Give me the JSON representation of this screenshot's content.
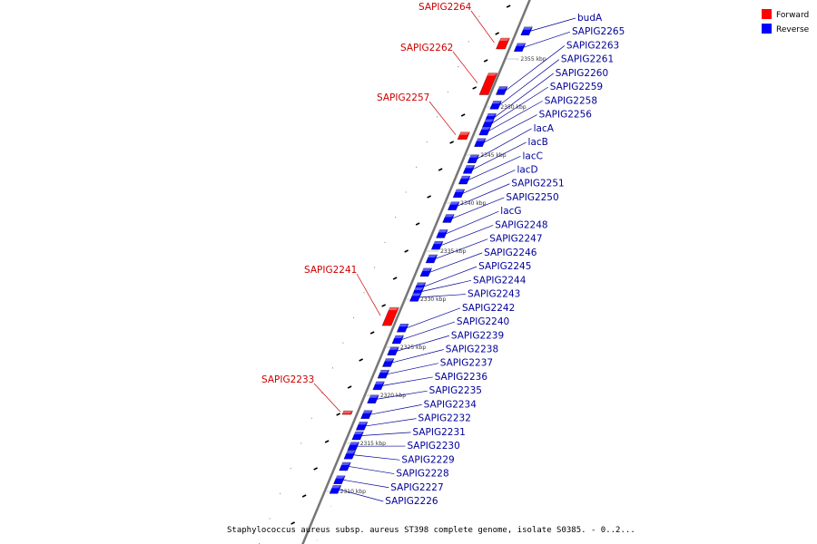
{
  "legend": [
    {
      "label": "Forward",
      "color": "#ff0000"
    },
    {
      "label": "Reverse",
      "color": "#0000ff"
    }
  ],
  "caption": "Staphylococcus aureus subsp. aureus ST398 complete genome, isolate S0385. - 0..2...",
  "colors": {
    "forward": "#ff0000",
    "reverse": "#0000ff",
    "label_forward": "#cc0000",
    "label_reverse": "#000099",
    "backbone": "#777777"
  },
  "scale_marks": [
    {
      "text": "2355 kbp",
      "kbp": 2355
    },
    {
      "text": "2350 kbp",
      "kbp": 2350
    },
    {
      "text": "2345 kbp",
      "kbp": 2345
    },
    {
      "text": "2340 kbp",
      "kbp": 2340
    },
    {
      "text": "2335 kbp",
      "kbp": 2335
    },
    {
      "text": "2330 kbp",
      "kbp": 2330
    },
    {
      "text": "2325 kbp",
      "kbp": 2325
    },
    {
      "text": "2320 kbp",
      "kbp": 2320
    },
    {
      "text": "2315 kbp",
      "kbp": 2315
    },
    {
      "text": "2310 kbp",
      "kbp": 2310
    }
  ],
  "genes_forward": [
    {
      "name": "SAPIG2264",
      "kbp": 2356.6
    },
    {
      "name": "SAPIG2262",
      "kbp": 2352.4
    },
    {
      "name": "SAPIG2257",
      "kbp": 2347.0
    },
    {
      "name": "SAPIG2241",
      "kbp": 2328.2
    },
    {
      "name": "SAPIG2233",
      "kbp": 2318.2
    }
  ],
  "genes_reverse": [
    {
      "name": "budA",
      "kbp": 2357.9
    },
    {
      "name": "SAPIG2265",
      "kbp": 2356.2
    },
    {
      "name": "SAPIG2263",
      "kbp": 2351.7
    },
    {
      "name": "SAPIG2261",
      "kbp": 2350.2
    },
    {
      "name": "SAPIG2260",
      "kbp": 2348.9
    },
    {
      "name": "SAPIG2259",
      "kbp": 2348.3
    },
    {
      "name": "SAPIG2258",
      "kbp": 2347.5
    },
    {
      "name": "SAPIG2256",
      "kbp": 2346.3
    },
    {
      "name": "lacA",
      "kbp": 2344.6
    },
    {
      "name": "lacB",
      "kbp": 2343.5
    },
    {
      "name": "lacC",
      "kbp": 2342.4
    },
    {
      "name": "lacD",
      "kbp": 2341.0
    },
    {
      "name": "SAPIG2251",
      "kbp": 2339.7
    },
    {
      "name": "SAPIG2250",
      "kbp": 2338.4
    },
    {
      "name": "lacG",
      "kbp": 2336.8
    },
    {
      "name": "SAPIG2248",
      "kbp": 2335.6
    },
    {
      "name": "SAPIG2247",
      "kbp": 2334.2
    },
    {
      "name": "SAPIG2246",
      "kbp": 2332.8
    },
    {
      "name": "SAPIG2245",
      "kbp": 2331.3
    },
    {
      "name": "SAPIG2244",
      "kbp": 2330.8
    },
    {
      "name": "SAPIG2243",
      "kbp": 2330.2
    },
    {
      "name": "SAPIG2242",
      "kbp": 2327.0
    },
    {
      "name": "SAPIG2240",
      "kbp": 2325.8
    },
    {
      "name": "SAPIG2239",
      "kbp": 2324.6
    },
    {
      "name": "SAPIG2238",
      "kbp": 2323.4
    },
    {
      "name": "SAPIG2237",
      "kbp": 2322.2
    },
    {
      "name": "SAPIG2236",
      "kbp": 2321.0
    },
    {
      "name": "SAPIG2235",
      "kbp": 2319.6
    },
    {
      "name": "SAPIG2234",
      "kbp": 2318.0
    },
    {
      "name": "SAPIG2232",
      "kbp": 2316.8
    },
    {
      "name": "SAPIG2231",
      "kbp": 2315.8
    },
    {
      "name": "SAPIG2230",
      "kbp": 2314.7
    },
    {
      "name": "SAPIG2229",
      "kbp": 2313.8
    },
    {
      "name": "SAPIG2228",
      "kbp": 2312.6
    },
    {
      "name": "SAPIG2227",
      "kbp": 2311.2
    },
    {
      "name": "SAPIG2226",
      "kbp": 2310.2
    }
  ]
}
